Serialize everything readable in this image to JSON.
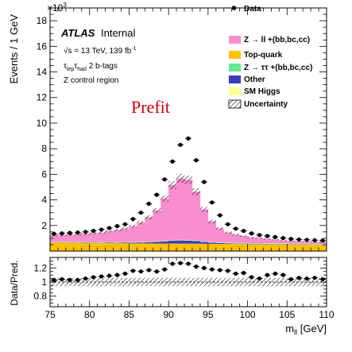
{
  "chart_data": {
    "type": "histogram",
    "x": [
      75,
      76,
      77,
      78,
      79,
      80,
      81,
      82,
      83,
      84,
      85,
      86,
      87,
      88,
      89,
      90,
      91,
      92,
      93,
      94,
      95,
      96,
      97,
      98,
      99,
      100,
      101,
      102,
      103,
      104,
      105,
      106,
      107,
      108,
      109
    ],
    "bin_width": 1,
    "xlim": [
      75,
      110
    ],
    "ylim": [
      0,
      19000
    ],
    "xlabel": "m",
    "xlabel_sub": "ll",
    "xlabel_unit": " [GeV]",
    "ylabel": "Events / 1 GeV",
    "y_exponent_base": "×10",
    "y_exponent_power": "3",
    "xticks": [
      "75",
      "80",
      "85",
      "90",
      "95",
      "100",
      "105",
      "110"
    ],
    "yticks": [
      "2",
      "4",
      "6",
      "8",
      "10",
      "12",
      "14",
      "16",
      "18"
    ],
    "colors": {
      "zll": "#f78fcf",
      "top": "#ffc000",
      "ztautau": "#66e892",
      "other": "#3d3db8",
      "smhiggs": "#ffff99",
      "data": "#000000",
      "prefit": "#d60000"
    },
    "series": [
      {
        "name": "Z → ll +(bb,bc,cc)",
        "key": "zll",
        "values": [
          500,
          530,
          560,
          600,
          650,
          700,
          750,
          850,
          950,
          1050,
          1250,
          1500,
          1900,
          2400,
          3300,
          4300,
          4800,
          4700,
          3800,
          2500,
          1600,
          1100,
          800,
          650,
          550,
          450,
          400,
          350,
          300,
          250,
          220,
          200,
          180,
          160,
          150
        ]
      },
      {
        "name": "Top-quark",
        "key": "top",
        "values": [
          650,
          650,
          640,
          640,
          630,
          630,
          620,
          620,
          610,
          610,
          600,
          600,
          600,
          590,
          590,
          590,
          580,
          580,
          580,
          570,
          570,
          560,
          560,
          550,
          550,
          540,
          540,
          530,
          530,
          520,
          510,
          500,
          500,
          490,
          480
        ]
      },
      {
        "name": "Z → ττ +(bb,bc,cc)",
        "key": "ztautau",
        "values": [
          30,
          30,
          30,
          30,
          30,
          30,
          30,
          30,
          30,
          30,
          30,
          30,
          30,
          30,
          30,
          30,
          30,
          30,
          30,
          30,
          30,
          30,
          30,
          30,
          30,
          30,
          30,
          30,
          30,
          30,
          30,
          30,
          30,
          30,
          30
        ]
      },
      {
        "name": "Other",
        "key": "other",
        "values": [
          20,
          20,
          20,
          20,
          20,
          20,
          20,
          30,
          30,
          40,
          50,
          70,
          100,
          130,
          170,
          220,
          250,
          240,
          200,
          140,
          90,
          60,
          40,
          30,
          30,
          20,
          20,
          20,
          20,
          20,
          20,
          20,
          20,
          20,
          20
        ]
      },
      {
        "name": "SM Higgs",
        "key": "smhiggs",
        "values": [
          20,
          20,
          20,
          20,
          20,
          20,
          20,
          20,
          20,
          20,
          20,
          20,
          20,
          20,
          20,
          20,
          20,
          20,
          20,
          20,
          20,
          20,
          20,
          20,
          20,
          20,
          20,
          20,
          20,
          20,
          20,
          20,
          20,
          20,
          20
        ]
      }
    ],
    "data": [
      1350,
      1380,
      1420,
      1450,
      1500,
      1580,
      1680,
      1800,
      1950,
      2100,
      2500,
      3000,
      3700,
      4400,
      5600,
      7000,
      8300,
      8800,
      7100,
      5400,
      3800,
      2800,
      2100,
      1750,
      1580,
      1380,
      1250,
      1180,
      1100,
      1020,
      950,
      900,
      880,
      850,
      830
    ],
    "uncertainty_fraction": 0.06,
    "ratio": {
      "ylabel": "Data/Pred.",
      "ylim": [
        0.65,
        1.35
      ],
      "yticks": [
        "0.8",
        "1",
        "1.2"
      ],
      "values": [
        1.03,
        1.04,
        1.03,
        1.03,
        1.05,
        1.07,
        1.08,
        1.09,
        1.1,
        1.12,
        1.16,
        1.15,
        1.17,
        1.15,
        1.18,
        1.26,
        1.27,
        1.26,
        1.22,
        1.2,
        1.18,
        1.17,
        1.16,
        1.12,
        1.13,
        1.07,
        1.05,
        1.1,
        1.12,
        1.1,
        1.04,
        1.06,
        1.05,
        1.06,
        1.04
      ]
    },
    "legend": {
      "position": "top-right",
      "entries": [
        {
          "label": "Data",
          "key": "data",
          "style": "marker"
        },
        {
          "label": "Z → ll +(bb,bc,cc)",
          "key": "zll",
          "style": "box"
        },
        {
          "label": "Top-quark",
          "key": "top",
          "style": "box"
        },
        {
          "label": "Z → ττ +(bb,bc,cc)",
          "key": "ztautau",
          "style": "box"
        },
        {
          "label": "Other",
          "key": "other",
          "style": "box"
        },
        {
          "label": "SM Higgs",
          "key": "smhiggs",
          "style": "box"
        },
        {
          "label": "Uncertainty",
          "key": "uncertainty",
          "style": "hatch"
        }
      ]
    },
    "annotations": {
      "experiment": "ATLAS",
      "status": "Internal",
      "energy_prefix": "√s = 13 TeV, 139 fb",
      "lumi_power": "-1",
      "tau_lep": "lep",
      "tau_had": "had",
      "btag_text": " 2 b-tags",
      "region": "Z control region",
      "prefit": "Prefit"
    }
  }
}
